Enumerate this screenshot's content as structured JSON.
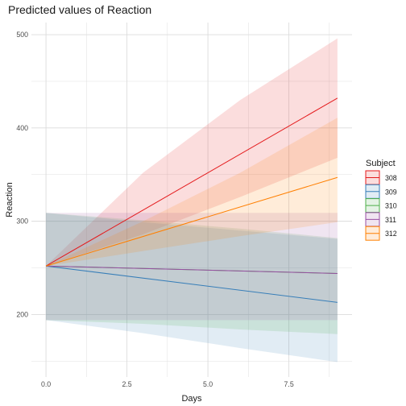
{
  "chart_data": {
    "type": "line",
    "title": "Predicted values of Reaction",
    "xlabel": "Days",
    "ylabel": "Reaction",
    "xlim": [
      -0.45,
      9.45
    ],
    "ylim": [
      133,
      513
    ],
    "x_ticks": [
      0.0,
      2.5,
      5.0,
      7.5
    ],
    "x_tick_labels": [
      "0.0",
      "2.5",
      "5.0",
      "7.5"
    ],
    "y_ticks": [
      200,
      300,
      400,
      500
    ],
    "y_tick_labels": [
      "200",
      "300",
      "400",
      "500"
    ],
    "grid": true,
    "legend": {
      "title": "Subject",
      "position": "right"
    },
    "series": [
      {
        "name": "308",
        "color": "#E41A1C",
        "x": [
          0,
          9
        ],
        "y": [
          252,
          432
        ],
        "ribbon_x": [
          0,
          3,
          6,
          9
        ],
        "ribbon_lower": [
          252,
          286,
          326,
          368
        ],
        "ribbon_upper": [
          252,
          352,
          430,
          496
        ]
      },
      {
        "name": "309",
        "color": "#377EB8",
        "x": [
          0,
          9
        ],
        "y": [
          252,
          213
        ],
        "ribbon_x": [
          0,
          3,
          6,
          9
        ],
        "ribbon_lower": [
          194,
          180,
          164,
          149
        ],
        "ribbon_upper": [
          309,
          299,
          290,
          281
        ]
      },
      {
        "name": "310",
        "color": "#4DAF4A",
        "x": [
          0,
          9
        ],
        "y": [
          252,
          244
        ],
        "ribbon_x": [
          0,
          3,
          6,
          9
        ],
        "ribbon_lower": [
          194,
          190,
          184,
          179
        ],
        "ribbon_upper": [
          309,
          301,
          292,
          282
        ]
      },
      {
        "name": "311",
        "color": "#984EA3",
        "x": [
          0,
          9
        ],
        "y": [
          252,
          244
        ],
        "ribbon_x": [
          0,
          3,
          6,
          9
        ],
        "ribbon_lower": [
          194,
          194,
          194,
          194
        ],
        "ribbon_upper": [
          309,
          309,
          309,
          309
        ]
      },
      {
        "name": "312",
        "color": "#FF7F00",
        "x": [
          0,
          9
        ],
        "y": [
          252,
          347
        ],
        "ribbon_x": [
          0,
          3,
          6,
          9
        ],
        "ribbon_lower": [
          252,
          268,
          284,
          299
        ],
        "ribbon_upper": [
          252,
          300,
          352,
          411
        ]
      }
    ]
  }
}
